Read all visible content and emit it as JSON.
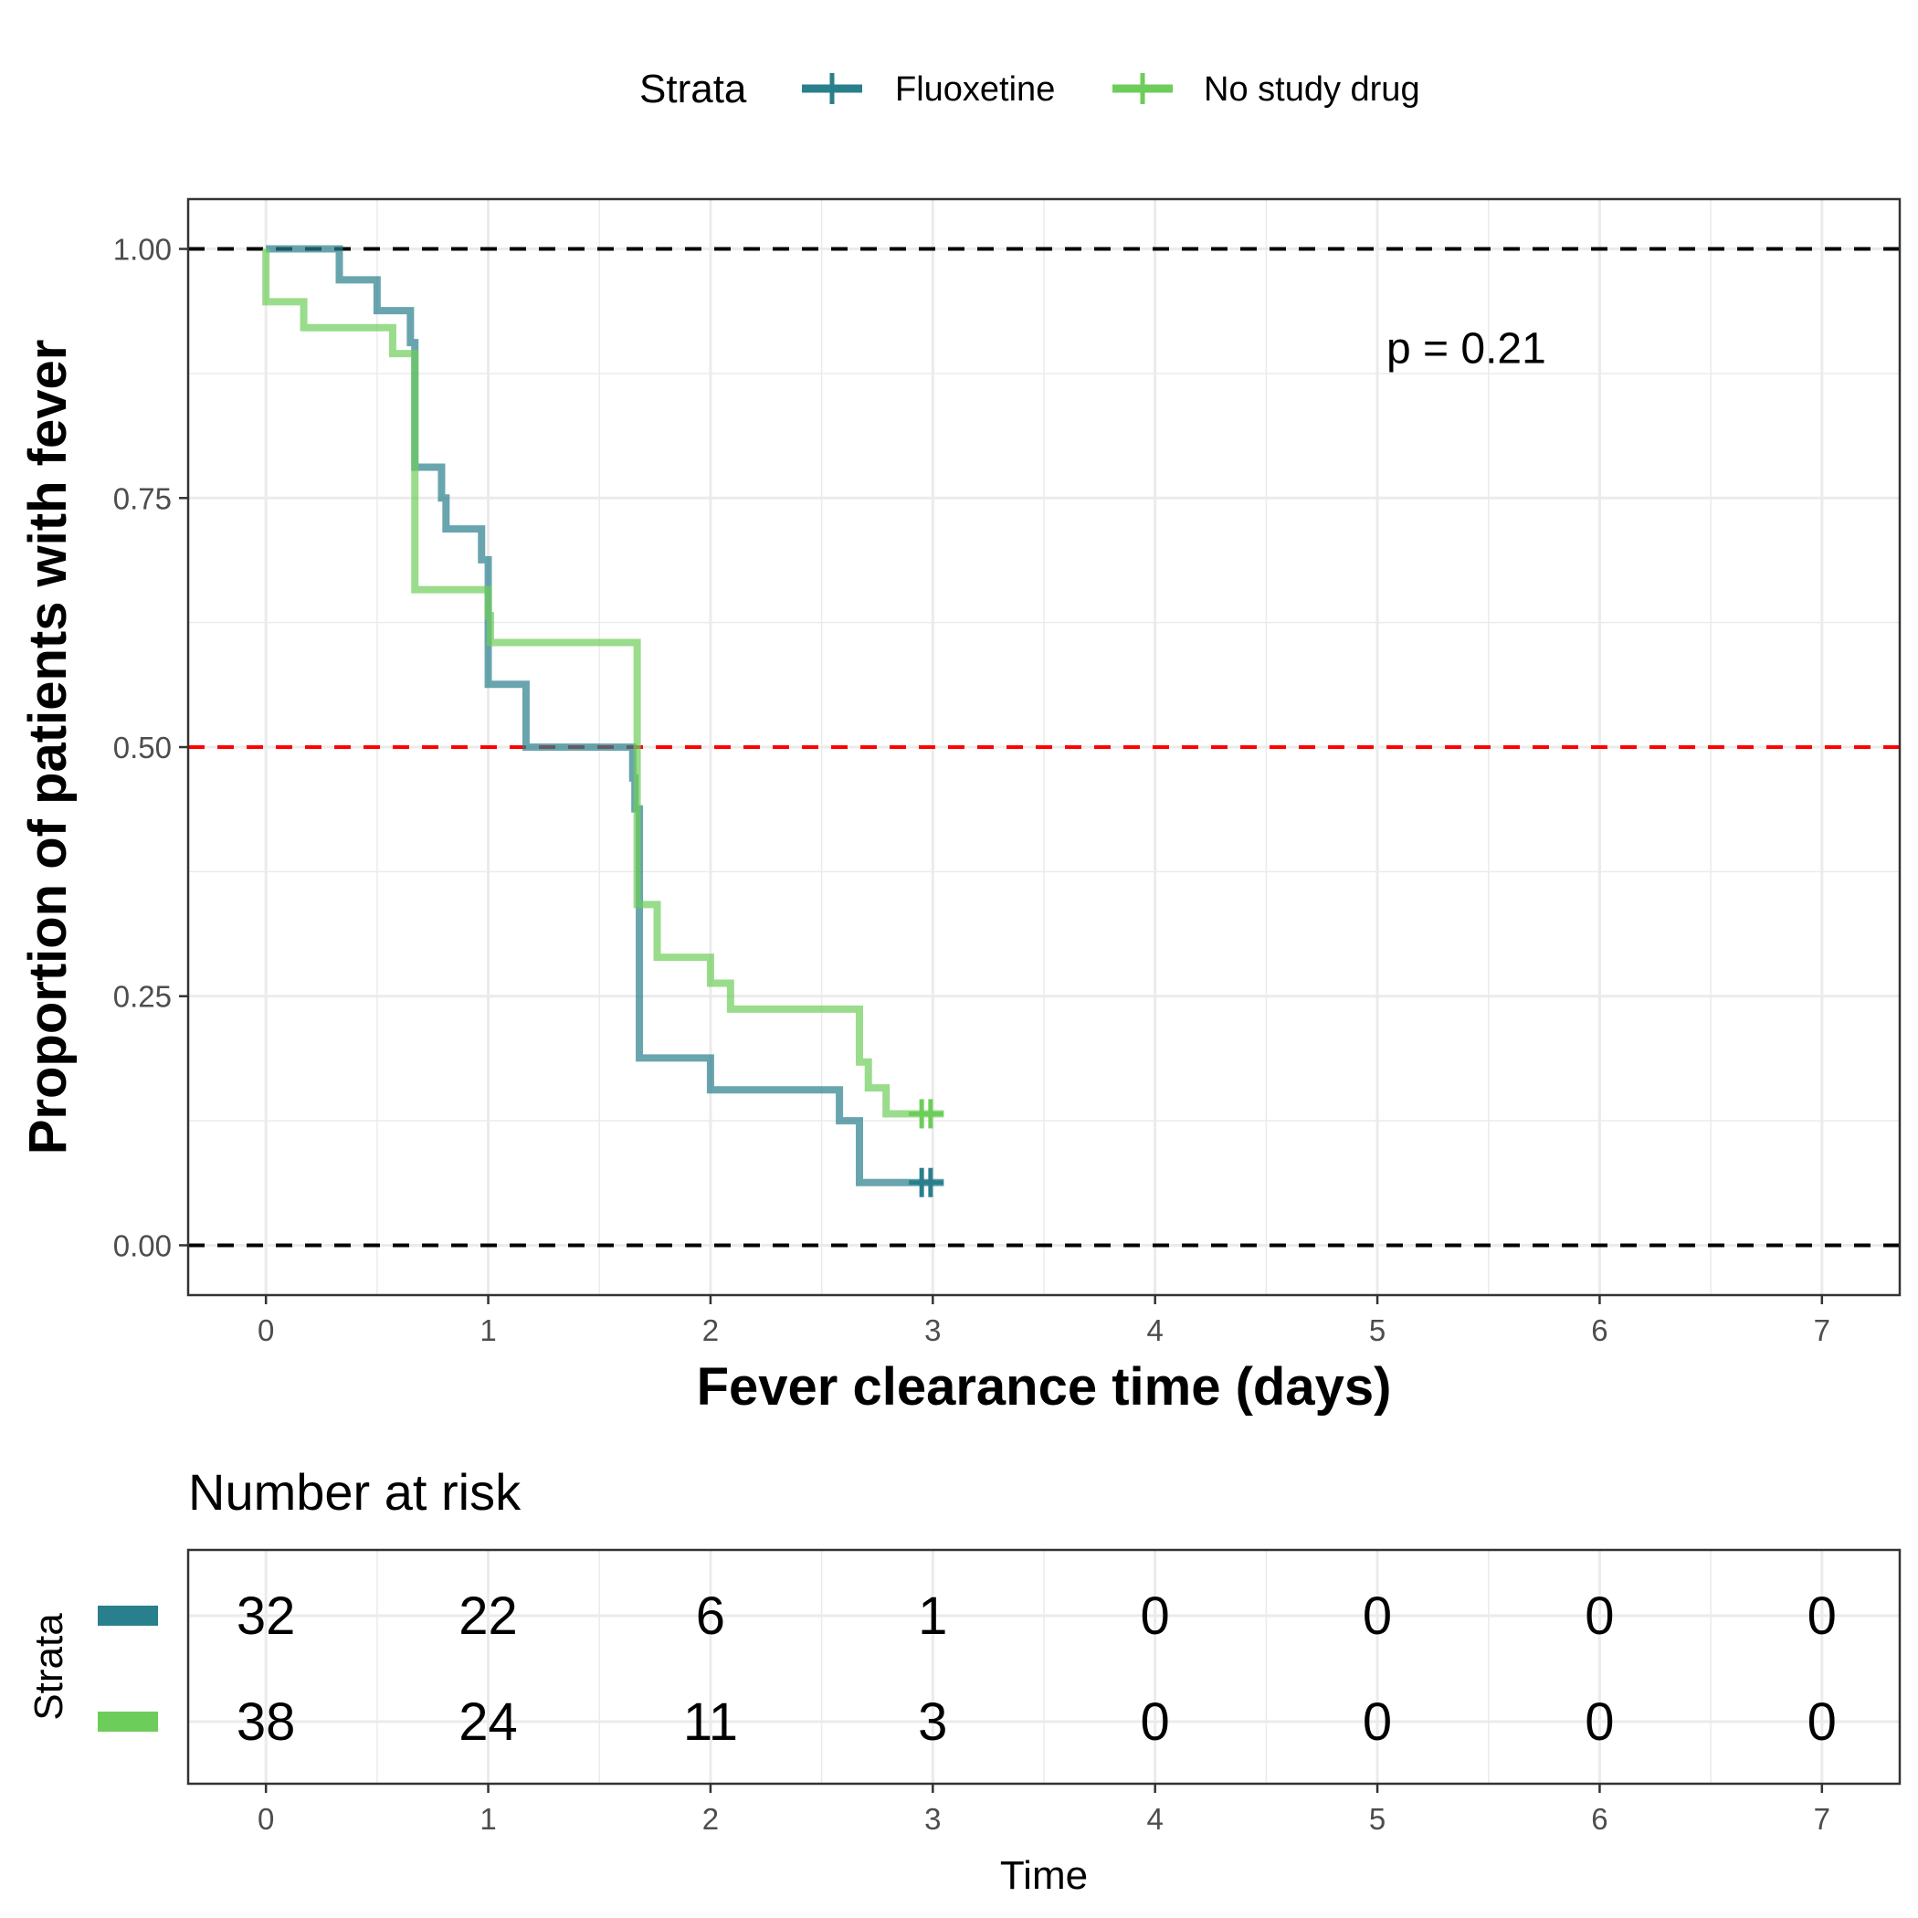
{
  "legend": {
    "title": "Strata",
    "items": [
      {
        "label": "Fluoxetine",
        "color": "#2a7f8c"
      },
      {
        "label": "No study drug",
        "color": "#6dcd5a"
      }
    ]
  },
  "chart_data": [
    {
      "type": "line",
      "subtype": "kaplan-meier step plot with censor marks",
      "xlabel": "Fever clearance time (days)",
      "ylabel": "Proportion of patients with fever",
      "xlim": [
        -0.35,
        7.35
      ],
      "ylim": [
        -0.05,
        1.05
      ],
      "x_ticks": [
        "0",
        "1",
        "2",
        "3",
        "4",
        "5",
        "6",
        "7"
      ],
      "y_ticks": [
        "0.00",
        "0.25",
        "0.50",
        "0.75",
        "1.00"
      ],
      "grid": true,
      "annotation": "p = 0.21",
      "annotation_at": [
        5.4,
        0.9
      ],
      "reference_lines": [
        {
          "y": 1.0,
          "color": "#000000",
          "style": "dashed"
        },
        {
          "y": 0.5,
          "color": "#ff0000",
          "style": "dashed"
        },
        {
          "y": 0.0,
          "color": "#000000",
          "style": "dashed"
        }
      ],
      "series": [
        {
          "name": "Fluoxetine",
          "color": "#2a7f8c",
          "steps": [
            [
              0,
              1.0
            ],
            [
              0.33,
              0.969
            ],
            [
              0.5,
              0.938
            ],
            [
              0.65,
              0.906
            ],
            [
              0.67,
              0.781
            ],
            [
              0.79,
              0.75
            ],
            [
              0.81,
              0.719
            ],
            [
              0.97,
              0.688
            ],
            [
              1.0,
              0.563
            ],
            [
              1.17,
              0.5
            ],
            [
              1.65,
              0.469
            ],
            [
              1.66,
              0.438
            ],
            [
              1.68,
              0.188
            ],
            [
              2.0,
              0.156
            ],
            [
              2.58,
              0.125
            ],
            [
              2.67,
              0.063
            ],
            [
              3.05,
              0.063
            ]
          ],
          "censored": [
            [
              2.95,
              0.063
            ],
            [
              2.99,
              0.063
            ]
          ]
        },
        {
          "name": "No study drug",
          "color": "#6dcd5a",
          "steps": [
            [
              0,
              1.0
            ],
            [
              0.0,
              0.947
            ],
            [
              0.17,
              0.921
            ],
            [
              0.57,
              0.895
            ],
            [
              0.67,
              0.658
            ],
            [
              1.0,
              0.632
            ],
            [
              1.01,
              0.605
            ],
            [
              1.67,
              0.342
            ],
            [
              1.76,
              0.289
            ],
            [
              2.0,
              0.263
            ],
            [
              2.09,
              0.237
            ],
            [
              2.67,
              0.184
            ],
            [
              2.71,
              0.158
            ],
            [
              2.79,
              0.132
            ],
            [
              3.05,
              0.132
            ]
          ],
          "censored": [
            [
              2.95,
              0.132
            ],
            [
              2.99,
              0.132
            ]
          ]
        }
      ]
    },
    {
      "type": "table",
      "title": "Number at risk",
      "xlabel": "Time",
      "ylabel": "Strata",
      "x_ticks": [
        "0",
        "1",
        "2",
        "3",
        "4",
        "5",
        "6",
        "7"
      ],
      "rows": [
        {
          "name": "Fluoxetine",
          "color": "#2a7f8c",
          "values": [
            "32",
            "22",
            "6",
            "1",
            "0",
            "0",
            "0",
            "0"
          ]
        },
        {
          "name": "No study drug",
          "color": "#6dcd5a",
          "values": [
            "38",
            "24",
            "11",
            "3",
            "0",
            "0",
            "0",
            "0"
          ]
        }
      ]
    }
  ]
}
